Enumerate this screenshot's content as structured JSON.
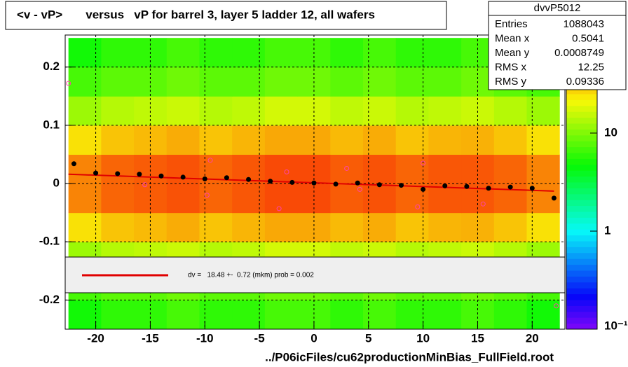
{
  "chart_data": {
    "type": "heatmap",
    "title": "<v - vP>       versus   vP for barrel 3, layer 5 ladder 12, all wafers",
    "footer": "../P06icFiles/cu62productionMinBias_FullField.root",
    "xlim": [
      -22.8,
      23
    ],
    "ylim": [
      -0.25,
      0.255
    ],
    "xticks": [
      -20,
      -15,
      -10,
      -5,
      0,
      5,
      10,
      15,
      20
    ],
    "yticks": [
      -0.2,
      -0.1,
      0,
      0.1,
      0.2
    ],
    "grid": true,
    "zlog": true,
    "zlim": [
      0.1,
      100
    ],
    "zticks": [
      {
        "value": 0.1,
        "label": "10⁻¹"
      },
      1,
      10
    ],
    "xbins": [
      -22.5,
      -19.5,
      -16.5,
      -13.5,
      -10.5,
      -7.5,
      -4.5,
      -1.5,
      1.5,
      4.5,
      7.5,
      10.5,
      13.5,
      16.5,
      19.5,
      22.5
    ],
    "ybins": [
      -0.25,
      -0.2,
      -0.15,
      -0.1,
      -0.05,
      0,
      0.05,
      0.1,
      0.15,
      0.2,
      0.25
    ],
    "z": [
      [
        5,
        6,
        6,
        7,
        6,
        6,
        7,
        7,
        6,
        7,
        6,
        6,
        7,
        6,
        5
      ],
      [
        7,
        8,
        8,
        9,
        8,
        8,
        9,
        9,
        8,
        9,
        8,
        8,
        9,
        8,
        7
      ],
      [
        12,
        14,
        15,
        16,
        14,
        15,
        17,
        17,
        15,
        16,
        14,
        15,
        16,
        14,
        12
      ],
      [
        25,
        30,
        32,
        35,
        30,
        33,
        36,
        36,
        32,
        35,
        30,
        33,
        34,
        30,
        25
      ],
      [
        45,
        55,
        58,
        62,
        55,
        60,
        65,
        65,
        58,
        62,
        55,
        60,
        60,
        55,
        45
      ],
      [
        45,
        55,
        58,
        62,
        55,
        60,
        65,
        65,
        58,
        62,
        55,
        60,
        60,
        55,
        45
      ],
      [
        25,
        30,
        32,
        35,
        30,
        33,
        36,
        36,
        32,
        35,
        30,
        33,
        34,
        30,
        25
      ],
      [
        12,
        14,
        15,
        16,
        14,
        15,
        17,
        17,
        15,
        16,
        14,
        15,
        16,
        14,
        12
      ],
      [
        7,
        8,
        8,
        9,
        8,
        8,
        9,
        9,
        8,
        9,
        8,
        8,
        9,
        8,
        7
      ],
      [
        5,
        6,
        6,
        7,
        6,
        6,
        7,
        7,
        6,
        7,
        6,
        6,
        7,
        6,
        5
      ]
    ],
    "profile": {
      "color": "#000000",
      "x": [
        -22,
        -20,
        -18,
        -16,
        -14,
        -12,
        -10,
        -8,
        -6,
        -4,
        -2,
        0,
        2,
        4,
        6,
        8,
        10,
        12,
        14,
        16,
        18,
        20,
        22
      ],
      "values": [
        0.034,
        0.018,
        0.017,
        0.016,
        0.013,
        0.011,
        0.008,
        0.01,
        0.007,
        0.004,
        0.002,
        0.001,
        -0.001,
        0.001,
        -0.002,
        -0.003,
        -0.01,
        -0.004,
        -0.005,
        -0.008,
        -0.006,
        -0.008,
        -0.025
      ]
    },
    "outliers": {
      "color": "#ff44aa",
      "x": [
        -22.5,
        -15.5,
        -9.5,
        -9.8,
        -3.2,
        -2.5,
        3,
        4.2,
        9.5,
        10,
        15.5,
        22.2
      ],
      "values": [
        0.172,
        -0.002,
        0.04,
        -0.02,
        -0.043,
        0.02,
        0.026,
        -0.01,
        -0.04,
        0.035,
        -0.035,
        -0.21
      ]
    },
    "fit": {
      "color": "#e00000",
      "x": [
        -22.5,
        22
      ],
      "values": [
        0.016,
        -0.013
      ]
    },
    "legend_text": "dv =   18.48 +-  0.72 (mkm) prob = 0.002",
    "stats": {
      "title": "dvvP5012",
      "rows": [
        [
          "Entries",
          "1088043"
        ],
        [
          "Mean x",
          "0.5041"
        ],
        [
          "Mean y",
          "0.0008749"
        ],
        [
          "RMS x",
          "12.25"
        ],
        [
          "RMS y",
          "0.09336"
        ]
      ]
    }
  }
}
